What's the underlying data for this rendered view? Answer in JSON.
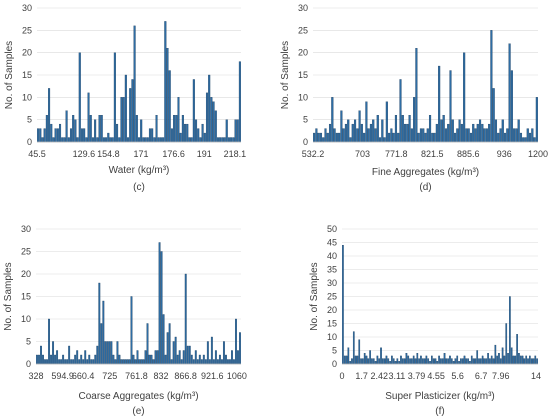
{
  "colors": {
    "bar_fill": "#2e6da4",
    "bar_edge": "#1b3d5e",
    "grid": "#d9d9d9",
    "text": "#404040"
  },
  "chart_data": [
    {
      "type": "bar",
      "panel": "(c)",
      "xlabel": "Water (kg/m³)",
      "ylabel": "No. of Samples",
      "ylim": [
        0,
        30
      ],
      "ytick_labels": [
        "0",
        "5",
        "10",
        "15",
        "20",
        "25",
        "30"
      ],
      "xtick_labels": [
        "45.5",
        "129.6",
        "154.8",
        "171",
        "176.6",
        "191",
        "218.1"
      ],
      "grid": true,
      "values": [
        3,
        3,
        1,
        3,
        6,
        12,
        4,
        1,
        3,
        3,
        4,
        1,
        1,
        7,
        1,
        3,
        6,
        5,
        1,
        20,
        3,
        3,
        1,
        11,
        6,
        1,
        5,
        1,
        6,
        6,
        1,
        1,
        2,
        1,
        1,
        20,
        4,
        1,
        10,
        10,
        15,
        1,
        12,
        14,
        26,
        6,
        1,
        5,
        1,
        1,
        1,
        3,
        3,
        1,
        6,
        1,
        1,
        1,
        27,
        21,
        16,
        3,
        6,
        6,
        10,
        2,
        6,
        4,
        4,
        1,
        1,
        14,
        5,
        3,
        1,
        4,
        2,
        11,
        15,
        10,
        9,
        7,
        1,
        1,
        1,
        1,
        5,
        1,
        1,
        1,
        5,
        5,
        18
      ]
    },
    {
      "type": "bar",
      "panel": "(d)",
      "xlabel": "Fine Aggregates (kg/m³)",
      "ylabel": "No. of Samples",
      "ylim": [
        0,
        30
      ],
      "ytick_labels": [
        "0",
        "5",
        "10",
        "15",
        "20",
        "25",
        "30"
      ],
      "xtick_labels": [
        "532.2",
        "703",
        "771.8",
        "821.5",
        "885.6",
        "936",
        "1200"
      ],
      "grid": true,
      "values": [
        2,
        3,
        2,
        2,
        1,
        3,
        2,
        4,
        10,
        3,
        2,
        2,
        7,
        3,
        4,
        5,
        1,
        4,
        5,
        3,
        7,
        4,
        2,
        9,
        3,
        4,
        5,
        3,
        6,
        1,
        5,
        1,
        9,
        2,
        3,
        2,
        6,
        2,
        14,
        6,
        4,
        4,
        6,
        3,
        10,
        21,
        2,
        3,
        3,
        2,
        3,
        6,
        2,
        2,
        4,
        17,
        5,
        6,
        3,
        4,
        16,
        5,
        2,
        3,
        5,
        4,
        20,
        3,
        3,
        2,
        4,
        3,
        4,
        5,
        4,
        3,
        3,
        4,
        25,
        12,
        5,
        2,
        3,
        5,
        2,
        3,
        22,
        16,
        3,
        3,
        5,
        2,
        1,
        1,
        3,
        2,
        3,
        1,
        10
      ]
    },
    {
      "type": "bar",
      "panel": "(e)",
      "xlabel": "Coarse Aggregates (kg/m³)",
      "ylabel": "No. of Samples",
      "ylim": [
        0,
        30
      ],
      "ytick_labels": [
        "0",
        "5",
        "10",
        "15",
        "20",
        "25",
        "30"
      ],
      "xtick_labels": [
        "328",
        "594.9",
        "660.4",
        "725",
        "761.8",
        "832",
        "866.8",
        "921.6",
        "1060"
      ],
      "grid": true,
      "values": [
        2,
        2,
        4,
        2,
        1,
        1,
        10,
        2,
        5,
        2,
        3,
        1,
        1,
        2,
        1,
        1,
        4,
        1,
        1,
        2,
        3,
        1,
        2,
        1,
        3,
        1,
        2,
        1,
        1,
        2,
        4,
        18,
        9,
        14,
        5,
        5,
        5,
        5,
        2,
        1,
        5,
        2,
        1,
        1,
        1,
        1,
        1,
        15,
        2,
        1,
        3,
        1,
        1,
        1,
        3,
        9,
        2,
        2,
        1,
        3,
        3,
        27,
        25,
        11,
        2,
        7,
        9,
        1,
        5,
        6,
        2,
        3,
        1,
        3,
        20,
        4,
        4,
        2,
        1,
        3,
        1,
        2,
        1,
        2,
        1,
        5,
        1,
        6,
        1,
        3,
        1,
        2,
        1,
        5,
        2,
        1,
        1,
        3,
        1,
        10,
        3,
        7
      ]
    },
    {
      "type": "bar",
      "panel": "(f)",
      "xlabel": "Super Plasticizer (kg/m³)",
      "ylabel": "No. of Samples",
      "ylim": [
        0,
        50
      ],
      "ytick_labels": [
        "0",
        "5",
        "10",
        "15",
        "20",
        "25",
        "30",
        "35",
        "40",
        "45",
        "50"
      ],
      "xtick_labels": [
        "0",
        "1.7",
        "2.42",
        "3.11",
        "3.79",
        "4.55",
        "5.6",
        "6.7",
        "7.96",
        "14"
      ],
      "grid": true,
      "values": [
        44,
        3,
        3,
        6,
        1,
        2,
        12,
        3,
        3,
        9,
        2,
        2,
        4,
        3,
        2,
        5,
        2,
        2,
        1,
        3,
        2,
        6,
        2,
        2,
        3,
        2,
        1,
        3,
        2,
        1,
        2,
        1,
        3,
        2,
        2,
        4,
        3,
        2,
        2,
        3,
        2,
        4,
        2,
        3,
        2,
        2,
        3,
        2,
        1,
        3,
        2,
        2,
        1,
        3,
        2,
        2,
        4,
        2,
        2,
        3,
        2,
        1,
        2,
        3,
        1,
        2,
        2,
        3,
        2,
        2,
        1,
        3,
        2,
        2,
        5,
        2,
        2,
        3,
        2,
        2,
        4,
        2,
        3,
        2,
        7,
        3,
        4,
        2,
        6,
        3,
        15,
        4,
        25,
        6,
        3,
        3,
        11,
        4,
        3,
        3,
        2,
        3,
        2,
        3,
        2,
        2,
        3,
        2
      ]
    }
  ]
}
